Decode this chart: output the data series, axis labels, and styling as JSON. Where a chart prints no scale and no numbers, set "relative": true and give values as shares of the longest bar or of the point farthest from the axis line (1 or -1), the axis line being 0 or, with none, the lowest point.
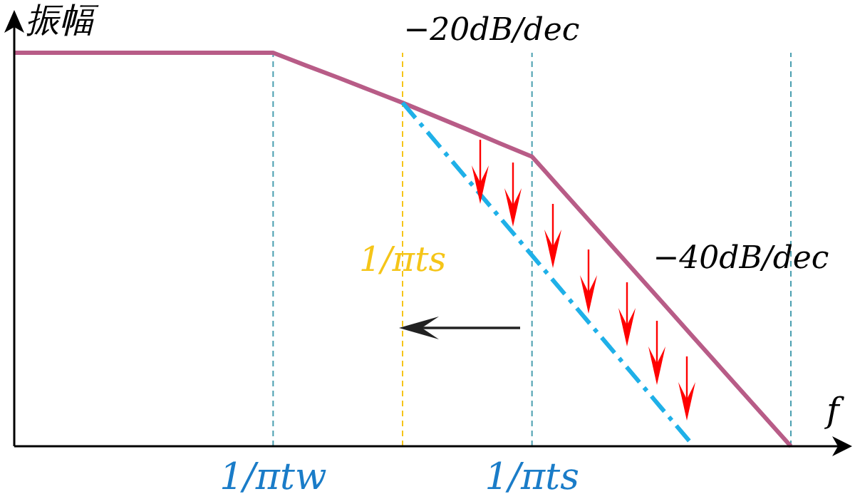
{
  "chart_data": {
    "type": "line",
    "relative": true,
    "ylabel": "振幅",
    "xlabel": "f",
    "categories": [
      null,
      null,
      null,
      null,
      null,
      null,
      null,
      null,
      "1/πtw",
      null,
      null,
      null,
      null,
      null,
      null,
      null,
      "1/πts",
      null,
      null,
      null,
      null,
      null,
      null,
      null,
      null
    ],
    "tick_labels": "x",
    "marker": "none",
    "grid": "x",
    "series": [
      {
        "color": "#b85c87",
        "values": [
          1,
          1,
          1,
          1,
          1,
          1,
          1,
          1,
          1,
          0.968,
          0.937,
          0.905,
          0.873,
          0.839,
          0.805,
          0.77,
          0.736,
          0.644,
          0.552,
          0.46,
          0.368,
          0.276,
          0.184,
          0.092,
          0
        ],
        "line_style": "solid"
      },
      {
        "color": "#1fb0e8",
        "values": [
          null,
          null,
          null,
          null,
          null,
          null,
          null,
          null,
          null,
          null,
          null,
          null,
          0.873,
          0.776,
          0.679,
          0.582,
          0.485,
          0.388,
          0.291,
          0.194,
          0.097,
          0,
          null,
          null,
          null
        ],
        "line_style": "dashed"
      }
    ],
    "annotations": [
      "−20dB/dec",
      "−40dB/dec",
      "1/πts"
    ]
  }
}
